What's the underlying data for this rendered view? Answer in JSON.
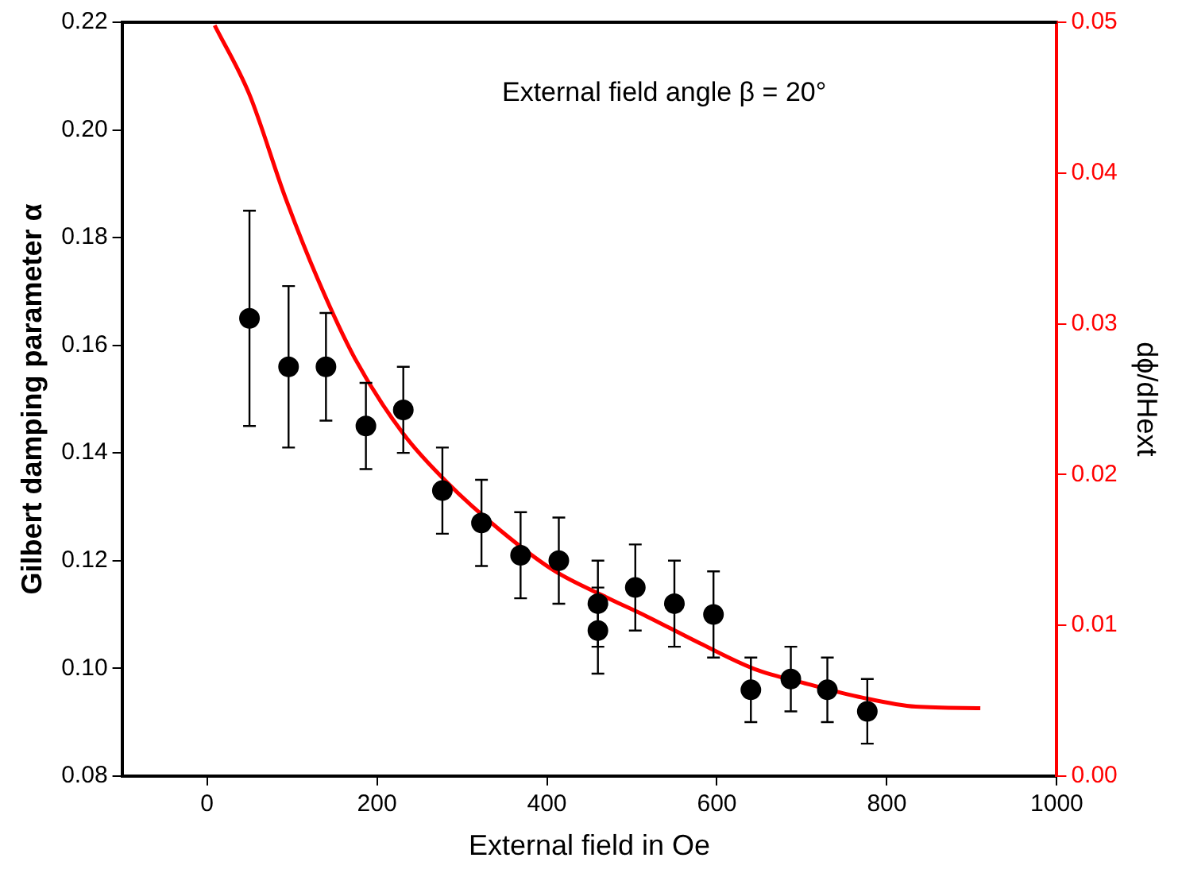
{
  "chart_data": {
    "type": "scatter",
    "xlabel": "External field in Oe",
    "ylabel": "Gilbert damping parameter α",
    "y2label": "dϕ/dHext",
    "annotations": [
      "External field angle β = 20°"
    ],
    "xlim": [
      -100,
      1000
    ],
    "xticks": [
      0,
      200,
      400,
      600,
      800,
      1000
    ],
    "ylim": [
      0.08,
      0.22
    ],
    "yticks": [
      0.08,
      {
        "value": 0.1,
        "label": "0.10"
      },
      0.12,
      0.14,
      0.16,
      0.18,
      {
        "value": 0.2,
        "label": "0.20"
      },
      0.22
    ],
    "y2lim": [
      0,
      0.05
    ],
    "y2ticks": [
      {
        "value": 0,
        "label": "0.00"
      },
      0.01,
      0.02,
      0.03,
      0.04,
      0.05
    ],
    "grid": false,
    "legend": false,
    "marker": "circle",
    "series": [
      {
        "color": "#000000",
        "x": [
          50,
          96,
          140,
          187,
          231,
          277,
          323,
          369,
          414,
          460,
          460,
          504,
          550,
          596,
          640,
          687,
          730,
          777
        ],
        "values": [
          0.165,
          0.156,
          0.156,
          0.145,
          0.148,
          0.133,
          0.127,
          0.121,
          0.12,
          0.112,
          0.107,
          0.115,
          0.112,
          0.11,
          0.096,
          0.098,
          0.096,
          0.092
        ],
        "errors": [
          0.02,
          0.015,
          0.01,
          0.008,
          0.008,
          0.008,
          0.008,
          0.008,
          0.008,
          0.008,
          0.008,
          0.008,
          0.008,
          0.008,
          0.006,
          0.006,
          0.006,
          0.006
        ]
      },
      {
        "type": "line",
        "axis": "y2",
        "color": "#ff0000",
        "marker": "none",
        "x": [
          9,
          50,
          92,
          130,
          174,
          231,
          282,
          345,
          409,
          472,
          517,
          580,
          644,
          707,
          771,
          834,
          910
        ],
        "values": [
          0.0498,
          0.0452,
          0.0384,
          0.033,
          0.0277,
          0.0227,
          0.0195,
          0.0163,
          0.0136,
          0.0118,
          0.0106,
          0.0088,
          0.0071,
          0.0061,
          0.0052,
          0.0046,
          0.0045
        ]
      }
    ]
  }
}
